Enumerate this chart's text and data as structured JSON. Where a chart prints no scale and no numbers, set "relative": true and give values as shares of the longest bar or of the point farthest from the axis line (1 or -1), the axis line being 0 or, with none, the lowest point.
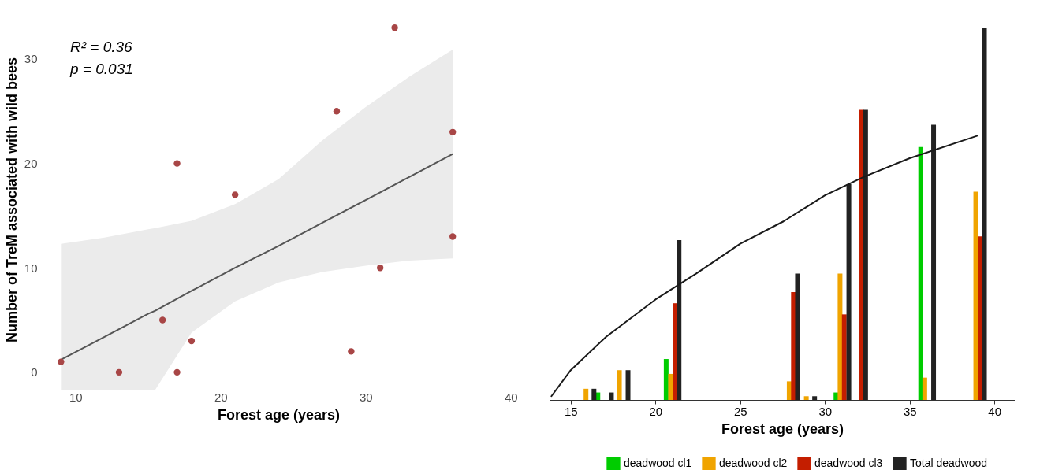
{
  "chart_data": [
    {
      "type": "scatter",
      "xlabel": "Forest age (years)",
      "ylabel": "Number of TreM associated with wild bees",
      "annotations": [
        "R² = 0.36",
        "p = 0.031"
      ],
      "xlim": [
        7.46,
        40.5
      ],
      "ylim": [
        -1.67,
        34.75
      ],
      "xticks": [
        10,
        20,
        30,
        40
      ],
      "yticks": [
        0,
        10,
        20,
        30
      ],
      "series": [
        {
          "type": "line",
          "color": "#555555",
          "x": [
            9,
            12,
            15,
            15.5,
            18,
            21,
            24,
            27,
            30,
            33,
            36
          ],
          "values": [
            1.2,
            3.4,
            5.6,
            5.9,
            7.8,
            10.0,
            12.1,
            14.3,
            16.5,
            18.7,
            20.9
          ],
          "lower": [
            -1.67,
            -1.67,
            -1.67,
            -1.67,
            3.8,
            6.8,
            8.6,
            9.6,
            10.2,
            10.7,
            10.9
          ],
          "upper": [
            12.3,
            12.9,
            13.7,
            13.8,
            14.5,
            16.1,
            18.5,
            22.2,
            25.4,
            28.3,
            30.9
          ]
        },
        {
          "color": "#a84646",
          "marker": "circle",
          "x": [
            9,
            13,
            17,
            17,
            16,
            18,
            21,
            28,
            29,
            31,
            32,
            36,
            36
          ],
          "values": [
            1,
            0,
            0,
            20,
            5,
            3,
            17,
            25,
            2,
            10,
            33,
            23,
            13
          ]
        }
      ]
    },
    {
      "type": "bar",
      "xlabel": "Forest age (years)",
      "relative": true,
      "xlim": [
        13.75,
        41.2
      ],
      "xticks": [
        15,
        20,
        25,
        30,
        35,
        40
      ],
      "legend": "bottom",
      "series": [
        {
          "name": "deadwood cl1",
          "color": "#00cc00",
          "x": [
            16.6,
            20.63,
            30.65,
            35.65
          ],
          "values": [
            0.02,
            0.11,
            0.02,
            0.68
          ]
        },
        {
          "name": "deadwood cl2",
          "color": "#f0a400",
          "x": [
            15.9,
            17.87,
            20.89,
            27.89,
            28.9,
            30.89,
            35.89,
            38.9
          ],
          "values": [
            0.03,
            0.08,
            0.07,
            0.05,
            0.01,
            0.34,
            0.06,
            0.56
          ]
        },
        {
          "name": "deadwood cl3",
          "color": "#c41e00",
          "x": [
            21.16,
            28.14,
            31.14,
            32.15,
            39.16
          ],
          "values": [
            0.26,
            0.29,
            0.23,
            0.78,
            0.44
          ]
        },
        {
          "name": "Total deadwood",
          "color": "#222222",
          "x": [
            16.37,
            17.4,
            18.38,
            21.39,
            28.38,
            29.39,
            31.41,
            32.4,
            36.41,
            39.41
          ],
          "values": [
            0.03,
            0.02,
            0.08,
            0.43,
            0.34,
            0.01,
            0.58,
            0.78,
            0.74,
            1
          ]
        },
        {
          "type": "line",
          "color": "#1a1a1a",
          "x": [
            13.86,
            15,
            17.09,
            20,
            22.41,
            25,
            27.55,
            30,
            32.3,
            35,
            38.97
          ],
          "values": [
            0.01,
            0.08,
            0.17,
            0.27,
            0.34,
            0.42,
            0.48,
            0.55,
            0.6,
            0.65,
            0.71
          ]
        }
      ]
    }
  ]
}
